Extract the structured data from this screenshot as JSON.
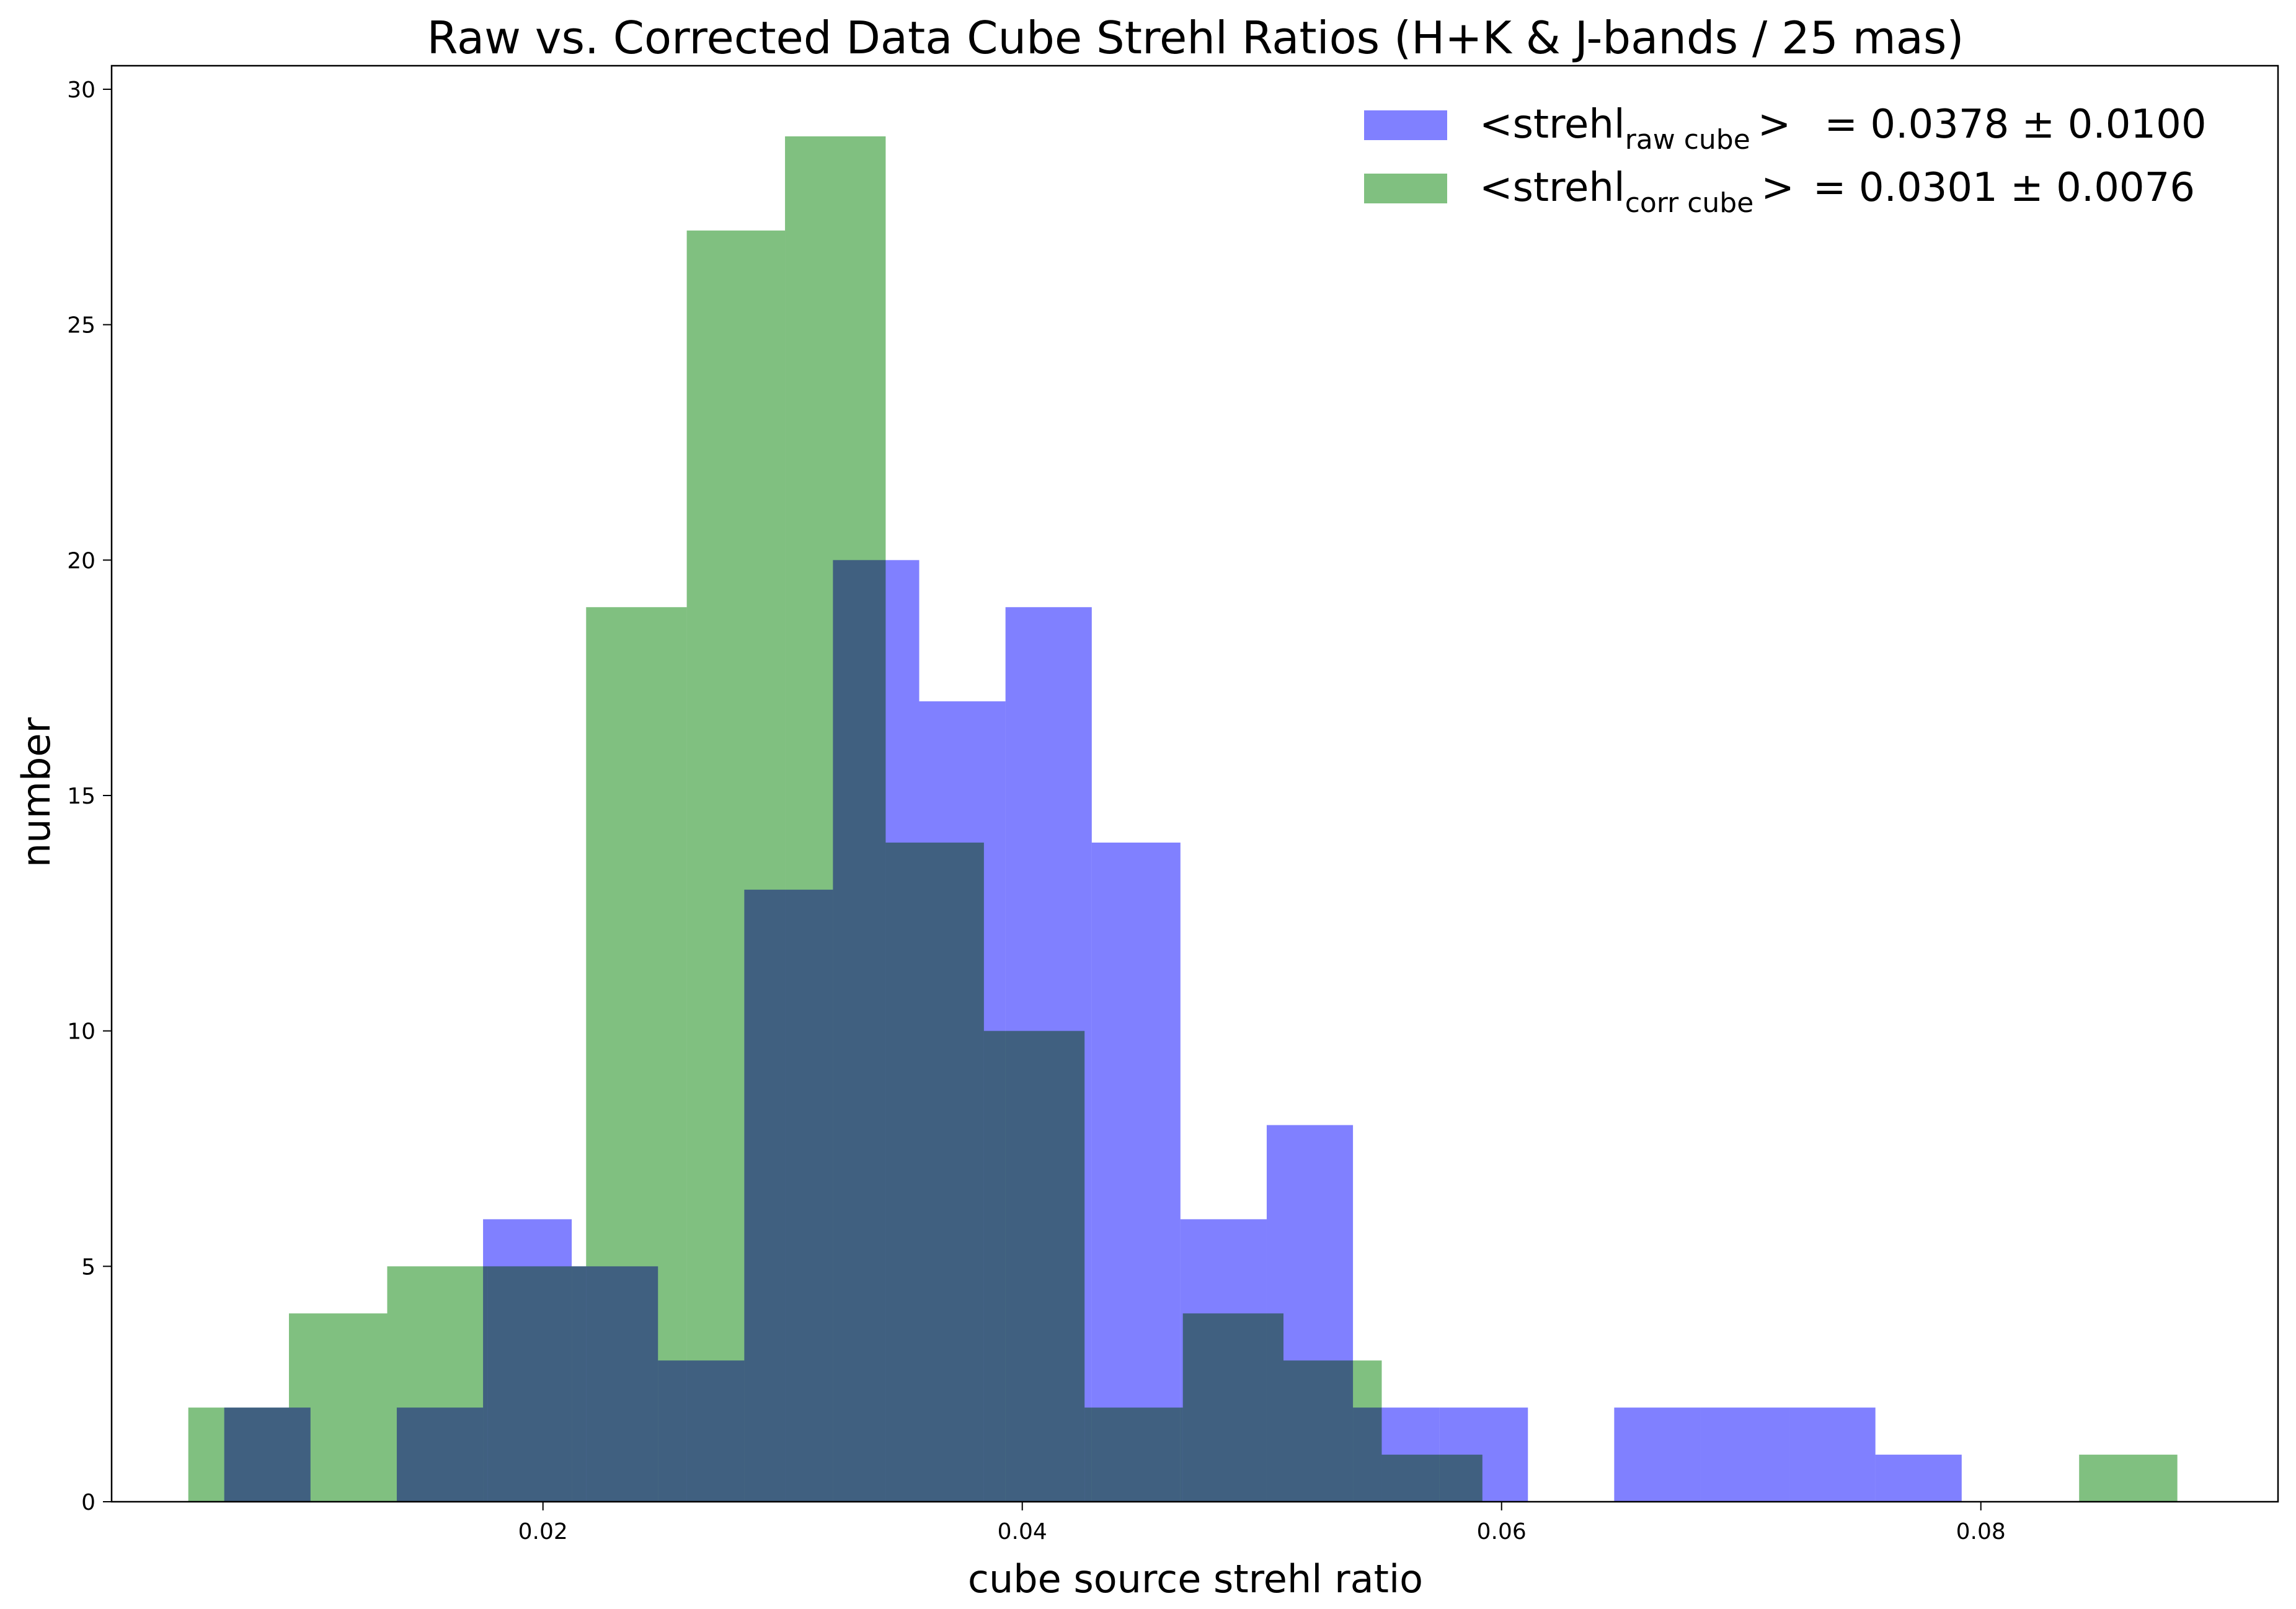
{
  "chart_data": {
    "type": "histogram",
    "title": "Raw vs. Corrected Data Cube Strehl Ratios (H+K & J-bands / 25 mas)",
    "xlabel": "cube source strehl ratio",
    "ylabel": "number",
    "xlim": [
      0.002,
      0.0924
    ],
    "ylim": [
      0,
      30.5
    ],
    "x_ticks": [
      0.02,
      0.04,
      0.06,
      0.08
    ],
    "x_tick_labels": [
      "0.02",
      "0.04",
      "0.06",
      "0.08"
    ],
    "y_ticks": [
      0,
      5,
      10,
      15,
      20,
      25,
      30
    ],
    "y_tick_labels": [
      "0",
      "5",
      "10",
      "15",
      "20",
      "25",
      "30"
    ],
    "grid": false,
    "legend_position": "top-right",
    "series": [
      {
        "name": "<strehl raw cube> = 0.0378 ± 0.0100",
        "legend": {
          "prefix": "<strehl",
          "subscript": "raw cube",
          "suffix": ">",
          "value": "= 0.0378 ± 0.0100"
        },
        "color": "#8080ff",
        "bins": [
          {
            "x0": 0.0067,
            "x1": 0.0103,
            "count": 2
          },
          {
            "x0": 0.0103,
            "x1": 0.0139,
            "count": 0
          },
          {
            "x0": 0.0139,
            "x1": 0.0175,
            "count": 2
          },
          {
            "x0": 0.0175,
            "x1": 0.0212,
            "count": 6
          },
          {
            "x0": 0.0212,
            "x1": 0.0248,
            "count": 5
          },
          {
            "x0": 0.0248,
            "x1": 0.0284,
            "count": 3
          },
          {
            "x0": 0.0284,
            "x1": 0.0321,
            "count": 13
          },
          {
            "x0": 0.0321,
            "x1": 0.0357,
            "count": 20
          },
          {
            "x0": 0.0357,
            "x1": 0.0393,
            "count": 17
          },
          {
            "x0": 0.0393,
            "x1": 0.0429,
            "count": 19
          },
          {
            "x0": 0.0429,
            "x1": 0.0466,
            "count": 14
          },
          {
            "x0": 0.0466,
            "x1": 0.0502,
            "count": 6
          },
          {
            "x0": 0.0502,
            "x1": 0.0538,
            "count": 8
          },
          {
            "x0": 0.0538,
            "x1": 0.0574,
            "count": 2
          },
          {
            "x0": 0.0574,
            "x1": 0.0611,
            "count": 2
          },
          {
            "x0": 0.0611,
            "x1": 0.0647,
            "count": 0
          },
          {
            "x0": 0.0647,
            "x1": 0.0683,
            "count": 2
          },
          {
            "x0": 0.0683,
            "x1": 0.072,
            "count": 2
          },
          {
            "x0": 0.072,
            "x1": 0.0756,
            "count": 2
          },
          {
            "x0": 0.0756,
            "x1": 0.0792,
            "count": 1
          }
        ]
      },
      {
        "name": "<strehl corr cube> = 0.0301 ± 0.0076",
        "legend": {
          "prefix": "<strehl",
          "subscript": "corr cube",
          "suffix": ">",
          "value": "= 0.0301 ± 0.0076"
        },
        "color": "#80c080",
        "bins": [
          {
            "x0": 0.0052,
            "x1": 0.0094,
            "count": 2
          },
          {
            "x0": 0.0094,
            "x1": 0.0135,
            "count": 4
          },
          {
            "x0": 0.0135,
            "x1": 0.0177,
            "count": 5
          },
          {
            "x0": 0.0177,
            "x1": 0.0218,
            "count": 5
          },
          {
            "x0": 0.0218,
            "x1": 0.026,
            "count": 19
          },
          {
            "x0": 0.026,
            "x1": 0.0301,
            "count": 27
          },
          {
            "x0": 0.0301,
            "x1": 0.0343,
            "count": 29
          },
          {
            "x0": 0.0343,
            "x1": 0.0384,
            "count": 14
          },
          {
            "x0": 0.0384,
            "x1": 0.0426,
            "count": 10
          },
          {
            "x0": 0.0426,
            "x1": 0.0467,
            "count": 2
          },
          {
            "x0": 0.0467,
            "x1": 0.0509,
            "count": 4
          },
          {
            "x0": 0.0509,
            "x1": 0.055,
            "count": 3
          },
          {
            "x0": 0.055,
            "x1": 0.0592,
            "count": 1
          },
          {
            "x0": 0.0592,
            "x1": 0.0633,
            "count": 0
          },
          {
            "x0": 0.0633,
            "x1": 0.0675,
            "count": 0
          },
          {
            "x0": 0.0675,
            "x1": 0.0716,
            "count": 0
          },
          {
            "x0": 0.0716,
            "x1": 0.0758,
            "count": 0
          },
          {
            "x0": 0.0758,
            "x1": 0.0799,
            "count": 0
          },
          {
            "x0": 0.0799,
            "x1": 0.0841,
            "count": 0
          },
          {
            "x0": 0.0841,
            "x1": 0.0882,
            "count": 1
          }
        ]
      }
    ]
  }
}
